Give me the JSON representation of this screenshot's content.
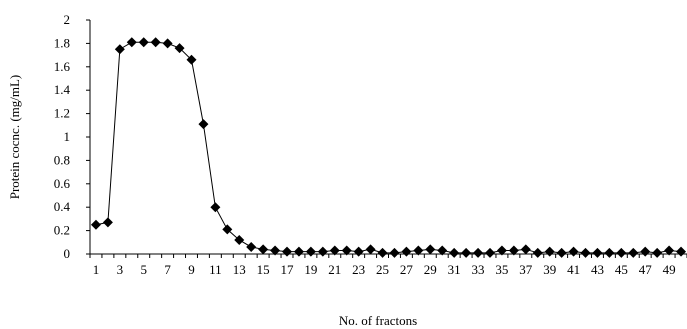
{
  "chart_data": {
    "type": "line",
    "title": "",
    "xlabel": "No. of fractons",
    "ylabel": "Protein cocnc. (mg/mL)",
    "ylim": [
      0,
      2
    ],
    "yticks": [
      "0",
      "0.2",
      "0.4",
      "0.6",
      "0.8",
      "1",
      "1.2",
      "1.4",
      "1.6",
      "1.8",
      "2"
    ],
    "xticks": [
      "1",
      "3",
      "5",
      "7",
      "9",
      "11",
      "13",
      "15",
      "17",
      "19",
      "21",
      "23",
      "25",
      "27",
      "29",
      "31",
      "33",
      "35",
      "37",
      "39",
      "41",
      "43",
      "45",
      "47",
      "49"
    ],
    "grid": false,
    "marker": "diamond",
    "color": "#000000",
    "series": [
      {
        "x": [
          1,
          2,
          3,
          4,
          5,
          6,
          7,
          8,
          9,
          10,
          11,
          12,
          13,
          14,
          15,
          16,
          17,
          18,
          19,
          20,
          21,
          22,
          23,
          24,
          25,
          26,
          27,
          28,
          29,
          30,
          31,
          32,
          33,
          34,
          35,
          36,
          37,
          38,
          39,
          40,
          41,
          42,
          43,
          44,
          45,
          46,
          47,
          48,
          49,
          50
        ],
        "values": [
          0.25,
          0.27,
          1.75,
          1.81,
          1.81,
          1.81,
          1.8,
          1.76,
          1.66,
          1.11,
          0.4,
          0.21,
          0.12,
          0.06,
          0.04,
          0.03,
          0.02,
          0.02,
          0.02,
          0.02,
          0.03,
          0.03,
          0.02,
          0.04,
          0.01,
          0.01,
          0.02,
          0.03,
          0.04,
          0.03,
          0.01,
          0.01,
          0.01,
          0.01,
          0.03,
          0.03,
          0.04,
          0.01,
          0.02,
          0.01,
          0.02,
          0.01,
          0.01,
          0.01,
          0.01,
          0.01,
          0.02,
          0.01,
          0.03,
          0.02
        ]
      }
    ]
  }
}
